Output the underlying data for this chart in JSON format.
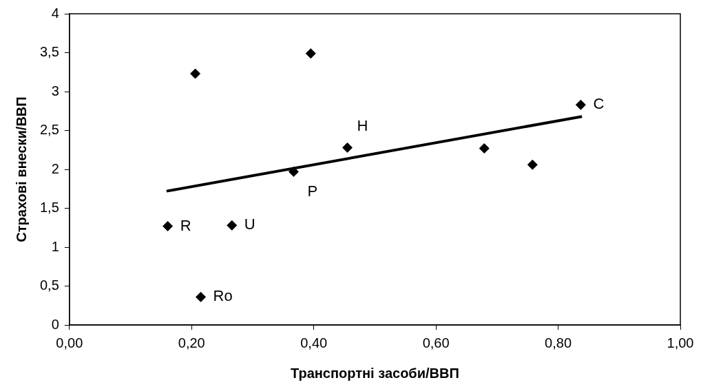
{
  "chart_data": {
    "type": "scatter",
    "xlabel": "Транспортні засоби/ВВП",
    "ylabel": "Страхові внески/ВВП",
    "series": [
      {
        "color": "#000000",
        "marker": "diamond",
        "x": [
          0.206,
          0.395,
          0.161,
          0.266,
          0.215,
          0.367,
          0.455,
          0.679,
          0.758,
          0.837
        ],
        "values": [
          3.23,
          3.49,
          1.27,
          1.28,
          0.36,
          1.97,
          2.28,
          2.27,
          2.06,
          2.83
        ]
      },
      {
        "type": "line",
        "color": "#000000",
        "marker": "none",
        "x": [
          0.159,
          0.839
        ],
        "values": [
          1.72,
          2.68
        ]
      }
    ],
    "annotations": [
      {
        "text": "R",
        "x": 0.161,
        "y": 1.27
      },
      {
        "text": "U",
        "x": 0.266,
        "y": 1.28
      },
      {
        "text": "Ro",
        "x": 0.215,
        "y": 0.36
      },
      {
        "text": "P",
        "x": 0.367,
        "y": 1.97
      },
      {
        "text": "H",
        "x": 0.455,
        "y": 2.28
      },
      {
        "text": "C",
        "x": 0.837,
        "y": 2.83
      }
    ],
    "xlim": [
      0,
      1
    ],
    "xticks": [
      {
        "value": 0,
        "label": "0,00"
      },
      {
        "value": 0.2,
        "label": "0,20"
      },
      {
        "value": 0.4,
        "label": "0,40"
      },
      {
        "value": 0.6,
        "label": "0,60"
      },
      {
        "value": 0.8,
        "label": "0,80"
      },
      {
        "value": 1,
        "label": "1,00"
      }
    ],
    "ylim": [
      0,
      4
    ],
    "yticks": [
      0,
      {
        "value": 0.5,
        "label": "0,5"
      },
      1,
      {
        "value": 1.5,
        "label": "1,5"
      },
      2,
      {
        "value": 2.5,
        "label": "2,5"
      },
      3,
      {
        "value": 3.5,
        "label": "3,5"
      },
      4
    ],
    "grid": false,
    "legend": false
  }
}
